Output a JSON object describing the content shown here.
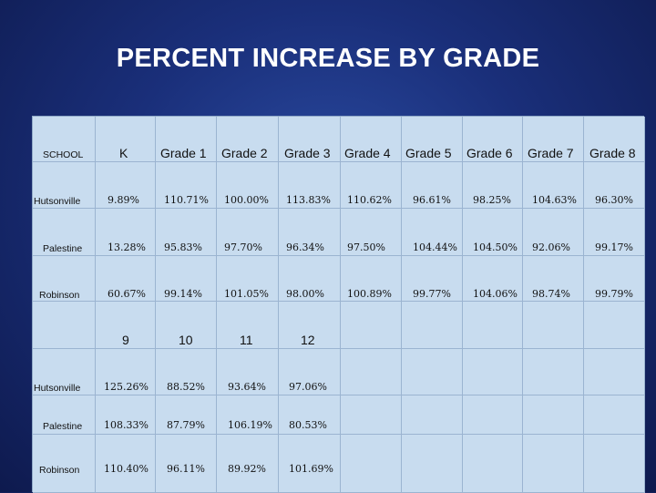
{
  "title": "PERCENT INCREASE BY GRADE",
  "table1": {
    "headers": [
      "SCHOOL",
      "K",
      "Grade 1",
      "Grade 2",
      "Grade 3",
      "Grade 4",
      "Grade 5",
      "Grade 6",
      "Grade 7",
      "Grade 8"
    ],
    "rows": [
      {
        "school": "Hutsonville",
        "values": [
          "9.89%",
          "110.71%",
          "100.00%",
          "113.83%",
          "110.62%",
          "96.61%",
          "98.25%",
          "104.63%",
          "96.30%"
        ]
      },
      {
        "school": "Palestine",
        "values": [
          "13.28%",
          "95.83%",
          "97.70%",
          "96.34%",
          "97.50%",
          "104.44%",
          "104.50%",
          "92.06%",
          "99.17%"
        ]
      },
      {
        "school": "Robinson",
        "values": [
          "60.67%",
          "99.14%",
          "101.05%",
          "98.00%",
          "100.89%",
          "99.77%",
          "104.06%",
          "98.74%",
          "99.79%"
        ]
      }
    ]
  },
  "table2": {
    "headers": [
      "9",
      "10",
      "11",
      "12"
    ],
    "rows": [
      {
        "school": "Hutsonville",
        "values": [
          "125.26%",
          "88.52%",
          "93.64%",
          "97.06%"
        ]
      },
      {
        "school": "Palestine",
        "values": [
          "108.33%",
          "87.79%",
          "106.19%",
          "80.53%"
        ]
      },
      {
        "school": "Robinson",
        "values": [
          "110.40%",
          "96.11%",
          "89.92%",
          "101.69%"
        ]
      }
    ]
  }
}
